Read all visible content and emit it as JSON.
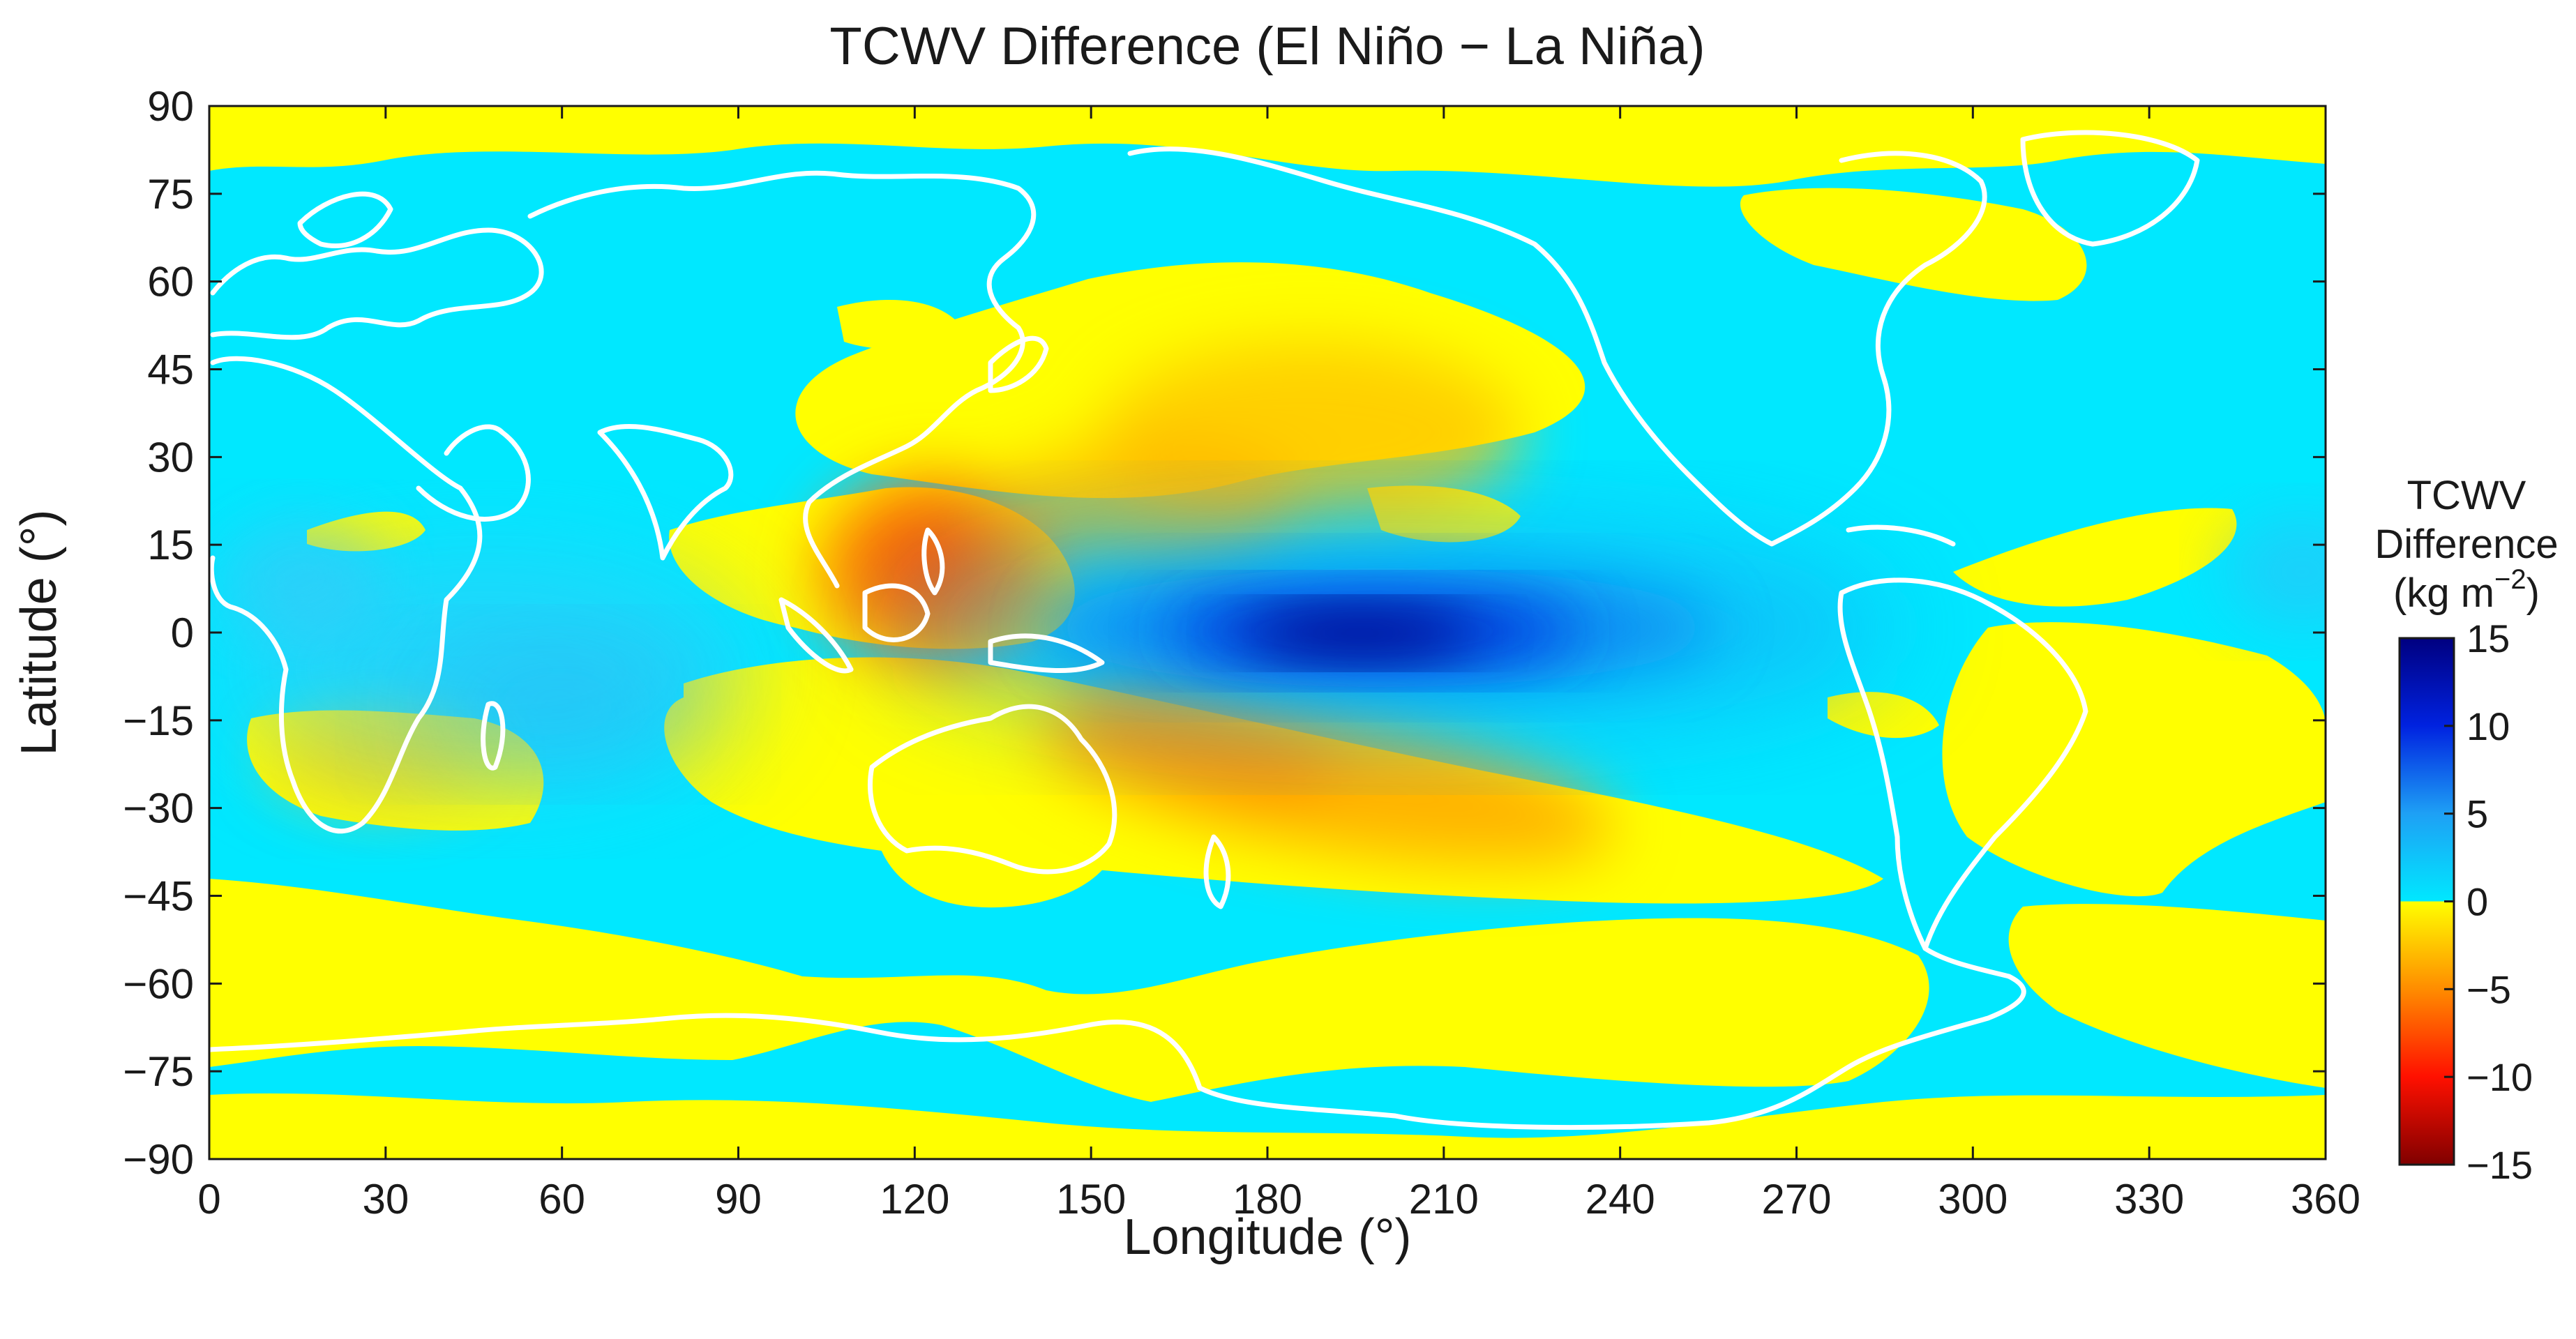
{
  "chart_data": {
    "type": "heatmap",
    "title": "TCWV Difference (El Niño − La Niña)",
    "xlabel": "Longitude (°)",
    "ylabel": "Latitude (°)",
    "xlim": [
      0,
      360
    ],
    "ylim": [
      -90,
      90
    ],
    "x_ticks": [
      "0",
      "30",
      "60",
      "90",
      "120",
      "150",
      "180",
      "210",
      "240",
      "270",
      "300",
      "330",
      "360"
    ],
    "y_ticks": [
      "90",
      "75",
      "60",
      "45",
      "30",
      "15",
      "0",
      "−15",
      "−30",
      "−45",
      "−60",
      "−75",
      "−90"
    ],
    "colorbar": {
      "title_lines": [
        "TCWV",
        "Difference",
        "(kg m",
        "−2",
        ")"
      ],
      "range": [
        -15,
        15
      ],
      "ticks": [
        "15",
        "10",
        "5",
        "0",
        "−5",
        "−10",
        "−15"
      ],
      "stops": [
        {
          "v": 15,
          "color": "#000080"
        },
        {
          "v": 10,
          "color": "#0022e0"
        },
        {
          "v": 5,
          "color": "#1ea0f5"
        },
        {
          "v": 0.01,
          "color": "#00e8ff"
        },
        {
          "v": 0,
          "color": "#ffff00"
        },
        {
          "v": -5,
          "color": "#ff8c00"
        },
        {
          "v": -10,
          "color": "#ff1000"
        },
        {
          "v": -15,
          "color": "#800000"
        }
      ]
    },
    "field_features": [
      {
        "name": "central-pacific-max",
        "lon": 190,
        "lat": -1,
        "value": 15,
        "rx": 32,
        "ry": 6
      },
      {
        "name": "maritime-continent-min",
        "lon": 125,
        "lat": 8,
        "value": -6.5,
        "rx": 14,
        "ry": 10
      },
      {
        "name": "south-pacific-min",
        "lon": 195,
        "lat": -25,
        "value": -4.5,
        "rx": 28,
        "ry": 8
      },
      {
        "name": "north-pacific-min",
        "lon": 195,
        "lat": 35,
        "value": -3,
        "rx": 30,
        "ry": 12
      },
      {
        "name": "indian-ocean-max",
        "lon": 70,
        "lat": -5,
        "value": 4,
        "rx": 25,
        "ry": 15
      }
    ]
  },
  "colors": {
    "background": "#ffffff",
    "coastline": "#ffffff",
    "positive_base": "#00e8ff",
    "negative_base": "#ffff00"
  }
}
